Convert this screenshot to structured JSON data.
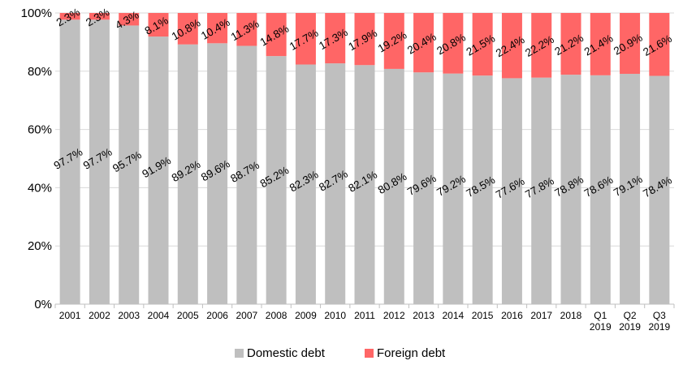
{
  "chart_data": {
    "type": "bar",
    "stacked": true,
    "percent": true,
    "categories": [
      "2001",
      "2002",
      "2003",
      "2004",
      "2005",
      "2006",
      "2007",
      "2008",
      "2009",
      "2010",
      "2011",
      "2012",
      "2013",
      "2014",
      "2015",
      "2016",
      "2017",
      "2018",
      "Q1 2019",
      "Q2 2019",
      "Q3 2019"
    ],
    "series": [
      {
        "name": "Domestic debt",
        "color": "#BFBFBF",
        "values": [
          97.7,
          97.7,
          95.7,
          91.9,
          89.2,
          89.6,
          88.7,
          85.2,
          82.3,
          82.7,
          82.1,
          80.8,
          79.6,
          79.2,
          78.5,
          77.6,
          77.8,
          78.8,
          78.6,
          79.1,
          78.4
        ]
      },
      {
        "name": "Foreign debt",
        "color": "#FF6666",
        "values": [
          2.3,
          2.3,
          4.3,
          8.1,
          10.8,
          10.4,
          11.3,
          14.8,
          17.7,
          17.3,
          17.9,
          19.2,
          20.4,
          20.8,
          21.5,
          22.4,
          22.2,
          21.2,
          21.4,
          20.9,
          21.6
        ]
      }
    ],
    "yticks": [
      "0%",
      "20%",
      "40%",
      "60%",
      "80%",
      "100%"
    ],
    "ylim": [
      0,
      100
    ],
    "xlabel": "",
    "ylabel": "",
    "title": "",
    "grid": "horizontal",
    "legend_position": "bottom"
  }
}
